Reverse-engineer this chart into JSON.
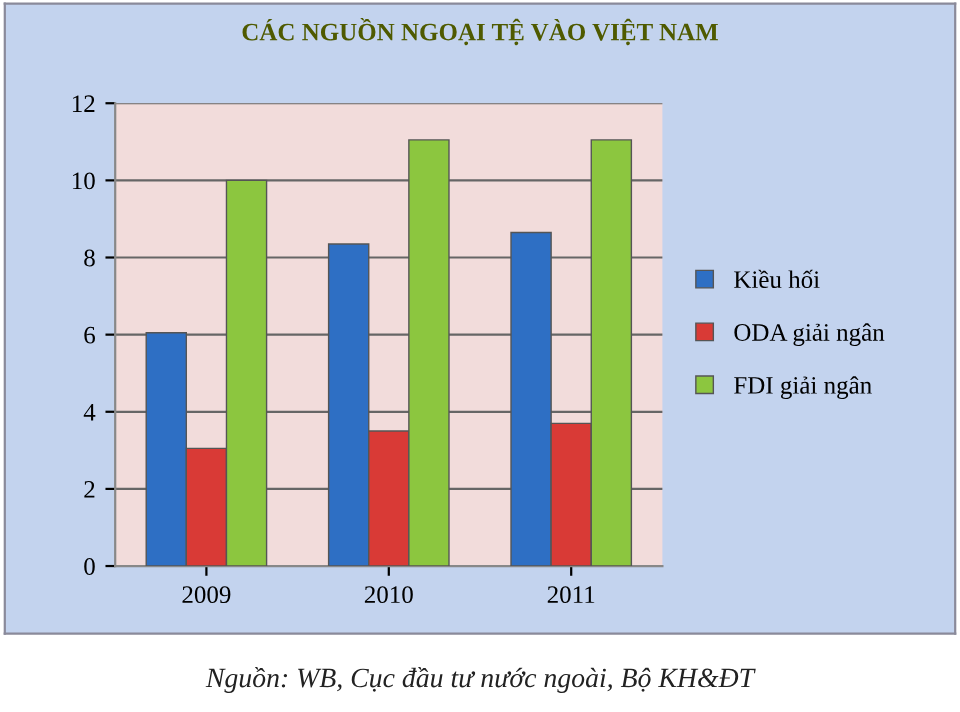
{
  "chart_data": {
    "type": "bar",
    "title": "CÁC NGUỒN NGOẠI TỆ VÀO VIỆT NAM",
    "categories": [
      "2009",
      "2010",
      "2011"
    ],
    "series": [
      {
        "name": "Kiều hối",
        "color": "#2e6fc4",
        "values": [
          6.05,
          8.35,
          8.65
        ]
      },
      {
        "name": "ODA giải ngân",
        "color": "#d93a36",
        "values": [
          3.05,
          3.5,
          3.7
        ]
      },
      {
        "name": "FDI giải ngân",
        "color": "#8cc63f",
        "values": [
          10.0,
          11.05,
          11.05
        ]
      }
    ],
    "ylim": [
      0,
      12
    ],
    "yticks": [
      0,
      2,
      4,
      6,
      8,
      10,
      12
    ],
    "grid": "y",
    "legend": "right",
    "annotations": [
      "Nguồn: WB, Cục đầu tư nước ngoài, Bộ KH&ĐT"
    ]
  }
}
